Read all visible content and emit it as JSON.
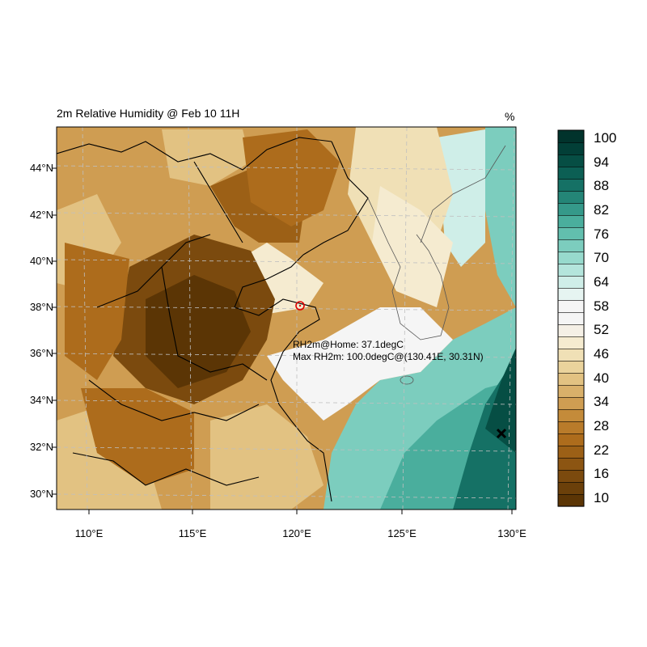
{
  "map": {
    "title": "2m Relative Humidity @ Feb 10 11H",
    "units": "%",
    "home_note": "RH2m@Home: 37.1degC",
    "max_note": "Max RH2m: 100.0degC@(130.41E, 30.31N)",
    "lat_labels": [
      "44°N",
      "42°N",
      "40°N",
      "38°N",
      "36°N",
      "34°N",
      "32°N",
      "30°N"
    ],
    "lon_labels": [
      "110°E",
      "115°E",
      "120°E",
      "125°E",
      "130°E"
    ]
  },
  "colorbar": {
    "labels": [
      "100",
      "94",
      "88",
      "82",
      "76",
      "70",
      "64",
      "58",
      "52",
      "46",
      "40",
      "34",
      "28",
      "22",
      "16",
      "10"
    ],
    "colors": [
      "#5b3505",
      "#6b400a",
      "#7b4a0e",
      "#8c5512",
      "#9c6016",
      "#ad6c1c",
      "#b97b2a",
      "#c48b3a",
      "#cf9d52",
      "#d9b06a",
      "#e2c282",
      "#ead39c",
      "#f0e0b6",
      "#f5ebd0",
      "#f5f0e6",
      "#f5f5f5",
      "#f5f5f5",
      "#e6f4f1",
      "#cfeee8",
      "#b4e5dc",
      "#97dacd",
      "#7ccdbe",
      "#62bfae",
      "#4aae9d",
      "#35998a",
      "#248577",
      "#157165",
      "#0c5f54",
      "#064e44",
      "#023f37",
      "#01332c"
    ]
  },
  "markers": {
    "home_marker": "circle",
    "max_marker": "x-mark"
  }
}
